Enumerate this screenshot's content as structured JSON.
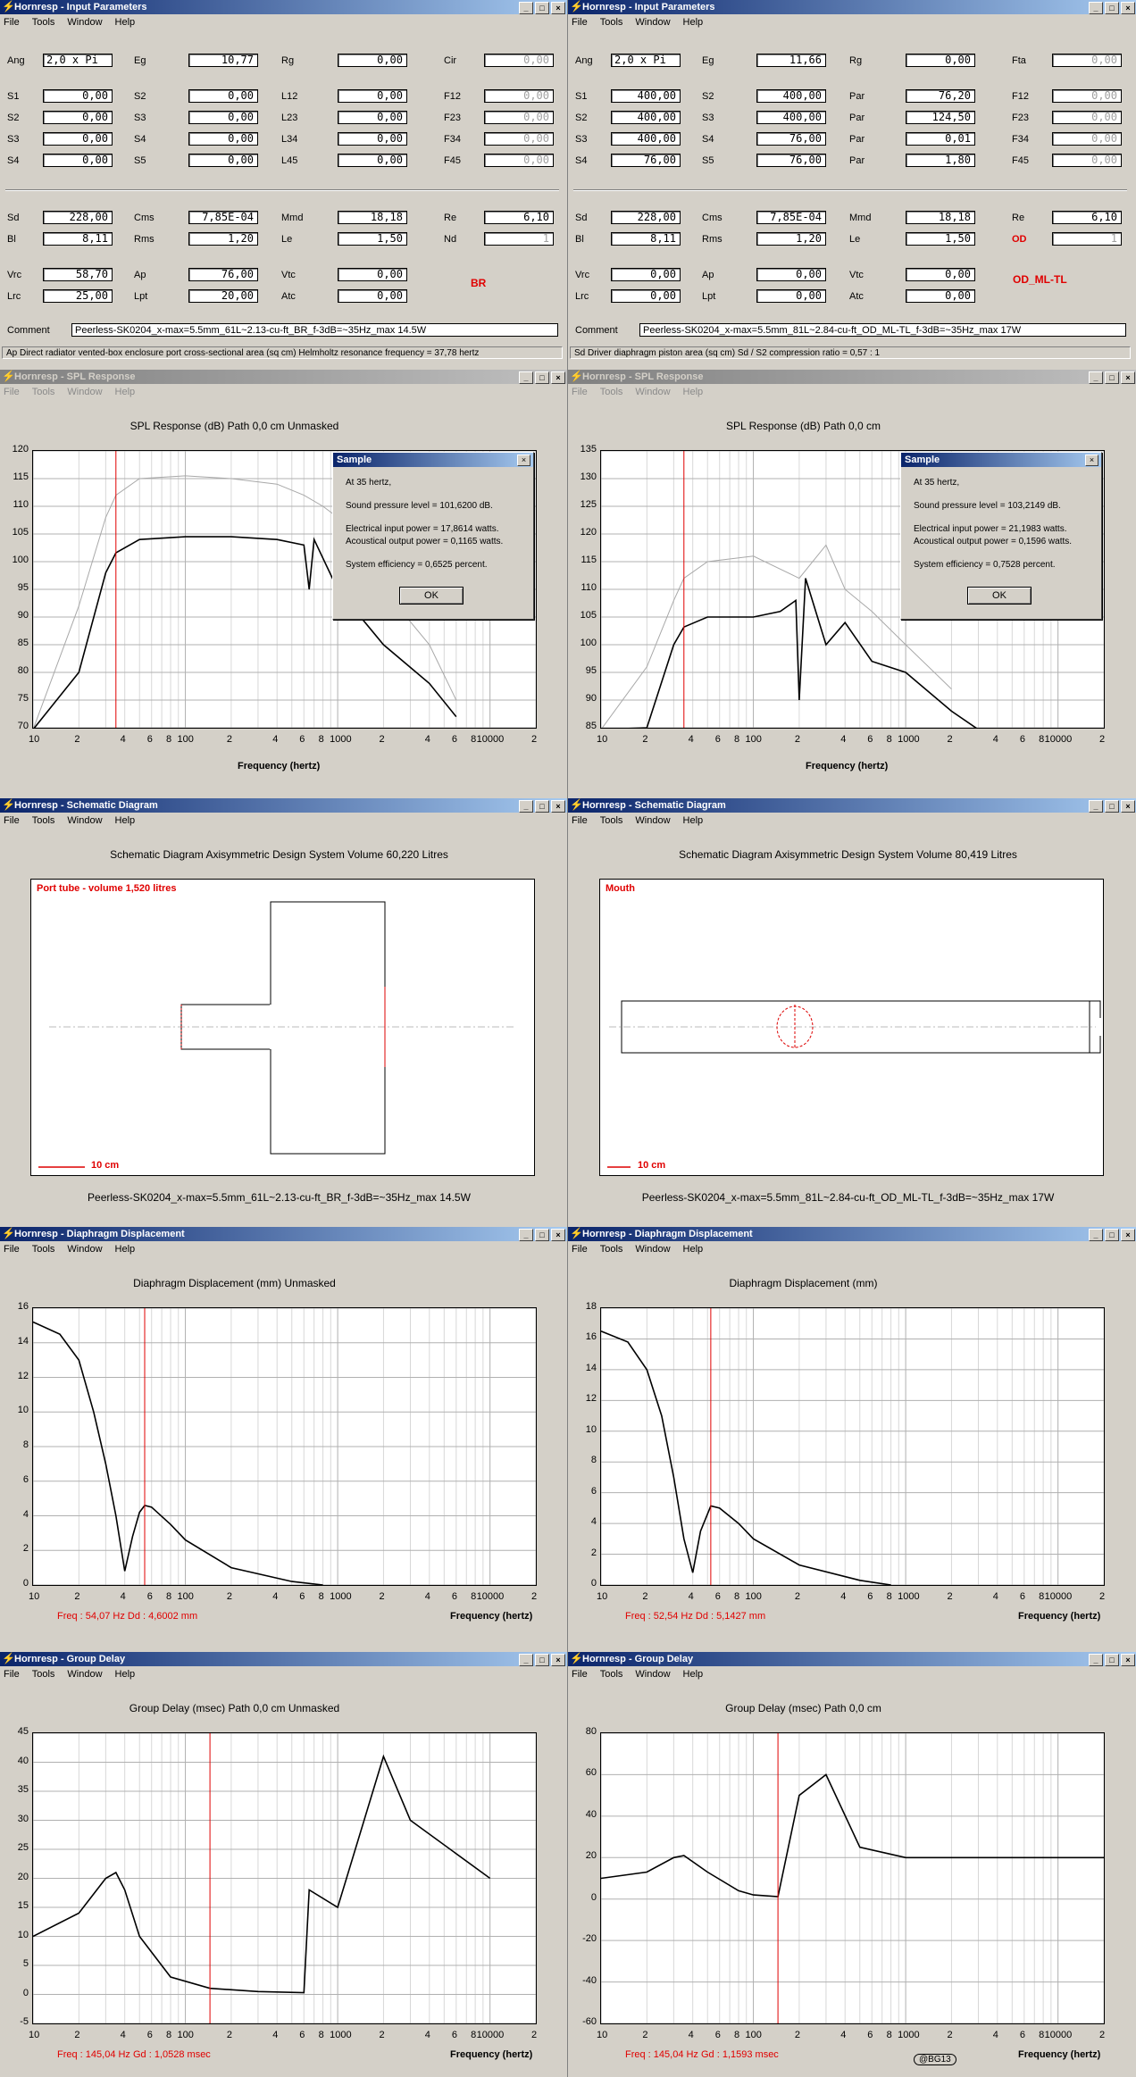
{
  "app": {
    "app_name": "Hornresp",
    "menu": [
      "File",
      "Tools",
      "Window",
      "Help"
    ]
  },
  "input_left": {
    "title": "Hornresp - Input Parameters",
    "rows1": [
      [
        [
          "Ang",
          "2,0 x Pi",
          0
        ],
        [
          "Eg",
          "10,77",
          0
        ],
        [
          "Rg",
          "0,00",
          0
        ],
        [
          "Cir",
          "0,00",
          1
        ]
      ],
      [
        [
          "S1",
          "0,00",
          0
        ],
        [
          "S2",
          "0,00",
          0
        ],
        [
          "L12",
          "0,00",
          0
        ],
        [
          "F12",
          "0,00",
          1
        ]
      ],
      [
        [
          "S2",
          "0,00",
          0
        ],
        [
          "S3",
          "0,00",
          0
        ],
        [
          "L23",
          "0,00",
          0
        ],
        [
          "F23",
          "0,00",
          1
        ]
      ],
      [
        [
          "S3",
          "0,00",
          0
        ],
        [
          "S4",
          "0,00",
          0
        ],
        [
          "L34",
          "0,00",
          0
        ],
        [
          "F34",
          "0,00",
          1
        ]
      ],
      [
        [
          "S4",
          "0,00",
          0
        ],
        [
          "S5",
          "0,00",
          0
        ],
        [
          "L45",
          "0,00",
          0
        ],
        [
          "F45",
          "0,00",
          1
        ]
      ]
    ],
    "rows2": [
      [
        [
          "Sd",
          "228,00",
          0
        ],
        [
          "Cms",
          "7,85E-04",
          0
        ],
        [
          "Mmd",
          "18,18",
          0
        ],
        [
          "Re",
          "6,10",
          0
        ]
      ],
      [
        [
          "Bl",
          "8,11",
          0
        ],
        [
          "Rms",
          "1,20",
          0
        ],
        [
          "Le",
          "1,50",
          0
        ],
        [
          "Nd",
          "1",
          1
        ]
      ]
    ],
    "rows3": [
      [
        [
          "Vrc",
          "58,70",
          0
        ],
        [
          "Ap",
          "76,00",
          0
        ],
        [
          "Vtc",
          "0,00",
          0
        ]
      ],
      [
        [
          "Lrc",
          "25,00",
          0
        ],
        [
          "Lpt",
          "20,00",
          0
        ],
        [
          "Atc",
          "0,00",
          0
        ]
      ]
    ],
    "mode_label": "BR",
    "comment_label": "Comment",
    "comment": "Peerless-SK0204_x-max=5.5mm_61L~2.13-cu-ft_BR_f-3dB=~35Hz_max 14.5W",
    "status": "Ap  Direct radiator vented-box enclosure port cross-sectional area (sq cm)    Helmholtz resonance frequency = 37,78 hertz"
  },
  "input_right": {
    "title": "Hornresp - Input Parameters",
    "rows1": [
      [
        [
          "Ang",
          "2,0 x Pi",
          0
        ],
        [
          "Eg",
          "11,66",
          0
        ],
        [
          "Rg",
          "0,00",
          0
        ],
        [
          "Fta",
          "0,00",
          1
        ]
      ],
      [
        [
          "S1",
          "400,00",
          0
        ],
        [
          "S2",
          "400,00",
          0
        ],
        [
          "Par",
          "76,20",
          0
        ],
        [
          "F12",
          "0,00",
          1
        ]
      ],
      [
        [
          "S2",
          "400,00",
          0
        ],
        [
          "S3",
          "400,00",
          0
        ],
        [
          "Par",
          "124,50",
          0
        ],
        [
          "F23",
          "0,00",
          1
        ]
      ],
      [
        [
          "S3",
          "400,00",
          0
        ],
        [
          "S4",
          "76,00",
          0
        ],
        [
          "Par",
          "0,01",
          0
        ],
        [
          "F34",
          "0,00",
          1
        ]
      ],
      [
        [
          "S4",
          "76,00",
          0
        ],
        [
          "S5",
          "76,00",
          0
        ],
        [
          "Par",
          "1,80",
          0
        ],
        [
          "F45",
          "0,00",
          1
        ]
      ]
    ],
    "rows2": [
      [
        [
          "Sd",
          "228,00",
          0
        ],
        [
          "Cms",
          "7,85E-04",
          0
        ],
        [
          "Mmd",
          "18,18",
          0
        ],
        [
          "Re",
          "6,10",
          0
        ]
      ],
      [
        [
          "Bl",
          "8,11",
          0
        ],
        [
          "Rms",
          "1,20",
          0
        ],
        [
          "Le",
          "1,50",
          0
        ],
        [
          "OD",
          "1",
          1
        ]
      ]
    ],
    "rows3": [
      [
        [
          "Vrc",
          "0,00",
          0
        ],
        [
          "Ap",
          "0,00",
          0
        ],
        [
          "Vtc",
          "0,00",
          0
        ]
      ],
      [
        [
          "Lrc",
          "0,00",
          0
        ],
        [
          "Lpt",
          "0,00",
          0
        ],
        [
          "Atc",
          "0,00",
          0
        ]
      ]
    ],
    "mode_label": "OD_ML-TL",
    "comment_label": "Comment",
    "comment": "Peerless-SK0204_x-max=5.5mm_81L~2.84-cu-ft_OD_ML-TL_f-3dB=~35Hz_max 17W",
    "status": "Sd   Driver diaphragm piston area (sq cm)    Sd / S2 compression ratio = 0,57 : 1"
  },
  "spl_left": {
    "title": "Hornresp - SPL Response",
    "heading": "SPL Response (dB)   Path 0,0 cm   Unmasked",
    "xlabel": "Frequency (hertz)",
    "yticks": [
      "120",
      "115",
      "110",
      "105",
      "100",
      "95",
      "90",
      "85",
      "80",
      "75",
      "70"
    ],
    "xticks": [
      "10",
      "2",
      "4",
      "6",
      "8",
      "100",
      "2",
      "4",
      "6",
      "8",
      "1000",
      "2",
      "4",
      "6",
      "8",
      "10000",
      "2"
    ],
    "dialog": {
      "title": "Sample",
      "line1": "At 35 hertz,",
      "line2": "Sound pressure level = 101,6200 dB.",
      "line3": "Electrical input power = 17,8614 watts.",
      "line4": "Acoustical output power = 0,1165 watts.",
      "line5": "System efficiency = 0,6525 percent.",
      "ok": "OK"
    }
  },
  "spl_right": {
    "title": "Hornresp - SPL Response",
    "heading": "SPL Response (dB)   Path 0,0 cm",
    "xlabel": "Frequency (hertz)",
    "yticks": [
      "135",
      "130",
      "125",
      "120",
      "115",
      "110",
      "105",
      "100",
      "95",
      "90",
      "85"
    ],
    "xticks": [
      "10",
      "2",
      "4",
      "6",
      "8",
      "100",
      "2",
      "4",
      "6",
      "8",
      "1000",
      "2",
      "4",
      "6",
      "8",
      "10000",
      "2"
    ],
    "dialog": {
      "title": "Sample",
      "line1": "At 35 hertz,",
      "line2": "Sound pressure level = 103,2149 dB.",
      "line3": "Electrical input power = 21,1983 watts.",
      "line4": "Acoustical output power = 0,1596 watts.",
      "line5": "System efficiency = 0,7528 percent.",
      "ok": "OK"
    }
  },
  "schem_left": {
    "title": "Hornresp - Schematic Diagram",
    "heading": "Schematic Diagram   Axisymmetric Design   System Volume 60,220 Litres",
    "tag": "Port tube - volume 1,520 litres",
    "scale": "10 cm",
    "footer": "Peerless-SK0204_x-max=5.5mm_61L~2.13-cu-ft_BR_f-3dB=~35Hz_max 14.5W"
  },
  "schem_right": {
    "title": "Hornresp - Schematic Diagram",
    "heading": "Schematic Diagram   Axisymmetric Design   System Volume 80,419 Litres",
    "tag": "Mouth",
    "scale": "10 cm",
    "footer": "Peerless-SK0204_x-max=5.5mm_81L~2.84-cu-ft_OD_ML-TL_f-3dB=~35Hz_max 17W"
  },
  "disp_left": {
    "title": "Hornresp - Diaphragm Displacement",
    "heading": "Diaphragm Displacement (mm)   Unmasked",
    "xlabel": "Frequency (hertz)",
    "yticks": [
      "16",
      "14",
      "12",
      "10",
      "8",
      "6",
      "4",
      "2",
      "0"
    ],
    "xticks": [
      "10",
      "2",
      "4",
      "6",
      "8",
      "100",
      "2",
      "4",
      "6",
      "8",
      "1000",
      "2",
      "4",
      "6",
      "8",
      "10000",
      "2"
    ],
    "readout": "Freq : 54,07 Hz     Dd : 4,6002 mm"
  },
  "disp_right": {
    "title": "Hornresp - Diaphragm Displacement",
    "heading": "Diaphragm Displacement (mm)",
    "xlabel": "Frequency (hertz)",
    "yticks": [
      "18",
      "16",
      "14",
      "12",
      "10",
      "8",
      "6",
      "4",
      "2",
      "0"
    ],
    "xticks": [
      "10",
      "2",
      "4",
      "6",
      "8",
      "100",
      "2",
      "4",
      "6",
      "8",
      "1000",
      "2",
      "4",
      "6",
      "8",
      "10000",
      "2"
    ],
    "readout": "Freq : 52,54 Hz     Dd : 5,1427 mm"
  },
  "gd_left": {
    "title": "Hornresp - Group Delay",
    "heading": "Group Delay (msec)   Path 0,0 cm   Unmasked",
    "xlabel": "Frequency (hertz)",
    "yticks": [
      "45",
      "40",
      "35",
      "30",
      "25",
      "20",
      "15",
      "10",
      "5",
      "0",
      "-5"
    ],
    "xticks": [
      "10",
      "2",
      "4",
      "6",
      "8",
      "100",
      "2",
      "4",
      "6",
      "8",
      "1000",
      "2",
      "4",
      "6",
      "8",
      "10000",
      "2"
    ],
    "readout": "Freq : 145,04 Hz     Gd : 1,0528 msec"
  },
  "gd_right": {
    "title": "Hornresp - Group Delay",
    "heading": "Group Delay (msec)   Path 0,0 cm",
    "xlabel": "Frequency (hertz)",
    "yticks": [
      "80",
      "60",
      "40",
      "20",
      "0",
      "-20",
      "-40",
      "-60"
    ],
    "xticks": [
      "10",
      "2",
      "4",
      "6",
      "8",
      "100",
      "2",
      "4",
      "6",
      "8",
      "1000",
      "2",
      "4",
      "6",
      "8",
      "10000",
      "2"
    ],
    "readout": "Freq : 145,04 Hz     Gd : 1,1593 msec",
    "watermark": "@BG13"
  },
  "chart_data": [
    {
      "type": "line",
      "title": "SPL Response (dB)   Path 0,0 cm   Unmasked",
      "xlabel": "Frequency (hertz)",
      "ylabel": "",
      "xscale": "log",
      "xlim": [
        10,
        20000
      ],
      "ylim": [
        70,
        120
      ],
      "series": [
        {
          "x": [
            10,
            20,
            30,
            35,
            50,
            100,
            200,
            400,
            600,
            650,
            700,
            1000,
            2000,
            4000,
            6000
          ],
          "y": [
            55,
            80,
            98,
            101.6,
            104,
            104.5,
            104.5,
            104,
            103,
            95,
            104,
            95,
            85,
            78,
            72
          ]
        },
        {
          "x": [
            10,
            20,
            30,
            35,
            50,
            100,
            200,
            400,
            600,
            800,
            1000,
            2000,
            4000,
            6000
          ],
          "y": [
            66,
            92,
            108,
            112,
            115,
            115.5,
            115,
            114,
            112,
            110,
            108,
            95,
            85,
            75
          ]
        }
      ]
    },
    {
      "type": "line",
      "title": "SPL Response (dB)   Path 0,0 cm",
      "xlabel": "Frequency (hertz)",
      "ylabel": "",
      "xscale": "log",
      "xlim": [
        10,
        20000
      ],
      "ylim": [
        85,
        135
      ],
      "series": [
        {
          "x": [
            10,
            20,
            30,
            35,
            50,
            100,
            150,
            190,
            200,
            220,
            300,
            400,
            600,
            1000,
            2000,
            3000
          ],
          "y": [
            70,
            85,
            100,
            103.2,
            105,
            105,
            106,
            108,
            90,
            112,
            100,
            104,
            97,
            95,
            88,
            84
          ]
        },
        {
          "x": [
            10,
            20,
            30,
            35,
            50,
            100,
            200,
            300,
            400,
            600,
            1000,
            2000
          ],
          "y": [
            80,
            96,
            108,
            112,
            115,
            116,
            112,
            118,
            110,
            106,
            100,
            92
          ]
        }
      ]
    },
    {
      "type": "line",
      "title": "Diaphragm Displacement (mm)   Unmasked",
      "xlabel": "Frequency (hertz)",
      "ylabel": "",
      "xscale": "log",
      "xlim": [
        10,
        20000
      ],
      "ylim": [
        0,
        16
      ],
      "series": [
        {
          "x": [
            10,
            15,
            20,
            25,
            30,
            35,
            40,
            45,
            50,
            54.07,
            60,
            80,
            100,
            200,
            500,
            800
          ],
          "y": [
            15.2,
            14.5,
            13,
            10,
            7,
            4,
            0.8,
            2.8,
            4.2,
            4.6,
            4.5,
            3.5,
            2.6,
            1,
            0.2,
            0
          ]
        }
      ]
    },
    {
      "type": "line",
      "title": "Diaphragm Displacement (mm)",
      "xlabel": "Frequency (hertz)",
      "ylabel": "",
      "xscale": "log",
      "xlim": [
        10,
        20000
      ],
      "ylim": [
        0,
        18
      ],
      "series": [
        {
          "x": [
            10,
            15,
            20,
            25,
            30,
            35,
            40,
            45,
            52.54,
            60,
            80,
            100,
            200,
            500,
            800
          ],
          "y": [
            16.5,
            15.8,
            14,
            11,
            7,
            3,
            0.8,
            3.5,
            5.14,
            5,
            4,
            3,
            1.3,
            0.3,
            0
          ]
        }
      ]
    },
    {
      "type": "line",
      "title": "Group Delay (msec)   Path 0,0 cm   Unmasked",
      "xlabel": "Frequency (hertz)",
      "ylabel": "",
      "xscale": "log",
      "xlim": [
        10,
        20000
      ],
      "ylim": [
        -5,
        45
      ],
      "series": [
        {
          "x": [
            10,
            20,
            30,
            35,
            40,
            50,
            80,
            145.04,
            300,
            600,
            650,
            1000,
            2000,
            3000,
            10000
          ],
          "y": [
            10,
            14,
            20,
            21,
            18,
            10,
            3,
            1.05,
            0.5,
            0.3,
            18,
            15,
            41,
            30,
            20
          ]
        }
      ]
    },
    {
      "type": "line",
      "title": "Group Delay (msec)   Path 0,0 cm",
      "xlabel": "Frequency (hertz)",
      "ylabel": "",
      "xscale": "log",
      "xlim": [
        10,
        20000
      ],
      "ylim": [
        -60,
        80
      ],
      "series": [
        {
          "x": [
            10,
            20,
            30,
            35,
            50,
            80,
            100,
            145.04,
            200,
            300,
            500,
            1000,
            5000,
            20000
          ],
          "y": [
            10,
            13,
            20,
            21,
            13,
            4,
            2,
            1.16,
            50,
            60,
            25,
            20,
            20,
            20
          ]
        }
      ]
    }
  ]
}
